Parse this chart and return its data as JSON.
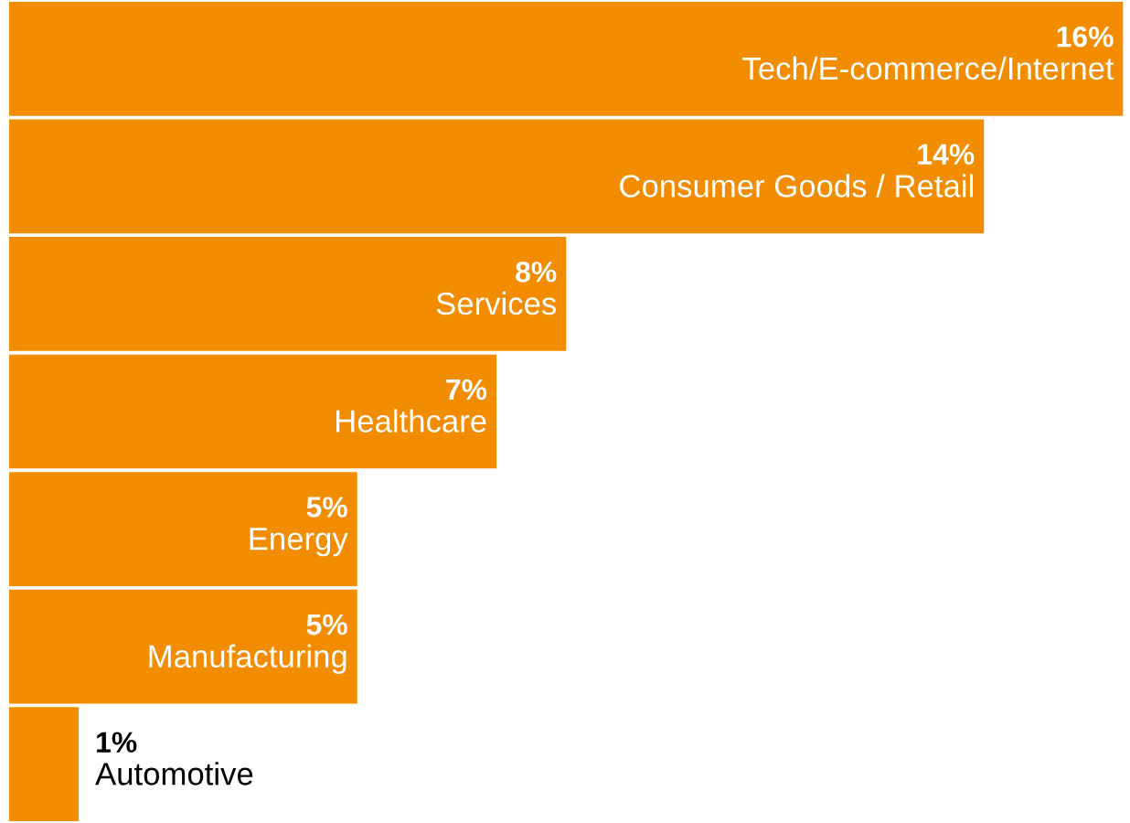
{
  "chart_data": {
    "type": "bar",
    "orientation": "horizontal",
    "categories": [
      "Tech/E-commerce/Internet",
      "Consumer Goods / Retail",
      "Services",
      "Healthcare",
      "Energy",
      "Manufacturing",
      "Automotive"
    ],
    "values": [
      16,
      14,
      8,
      7,
      5,
      5,
      1
    ],
    "value_labels": [
      "16%",
      "14%",
      "8%",
      "7%",
      "5%",
      "5%",
      "1%"
    ],
    "color": "#f28c00",
    "legend": false
  }
}
